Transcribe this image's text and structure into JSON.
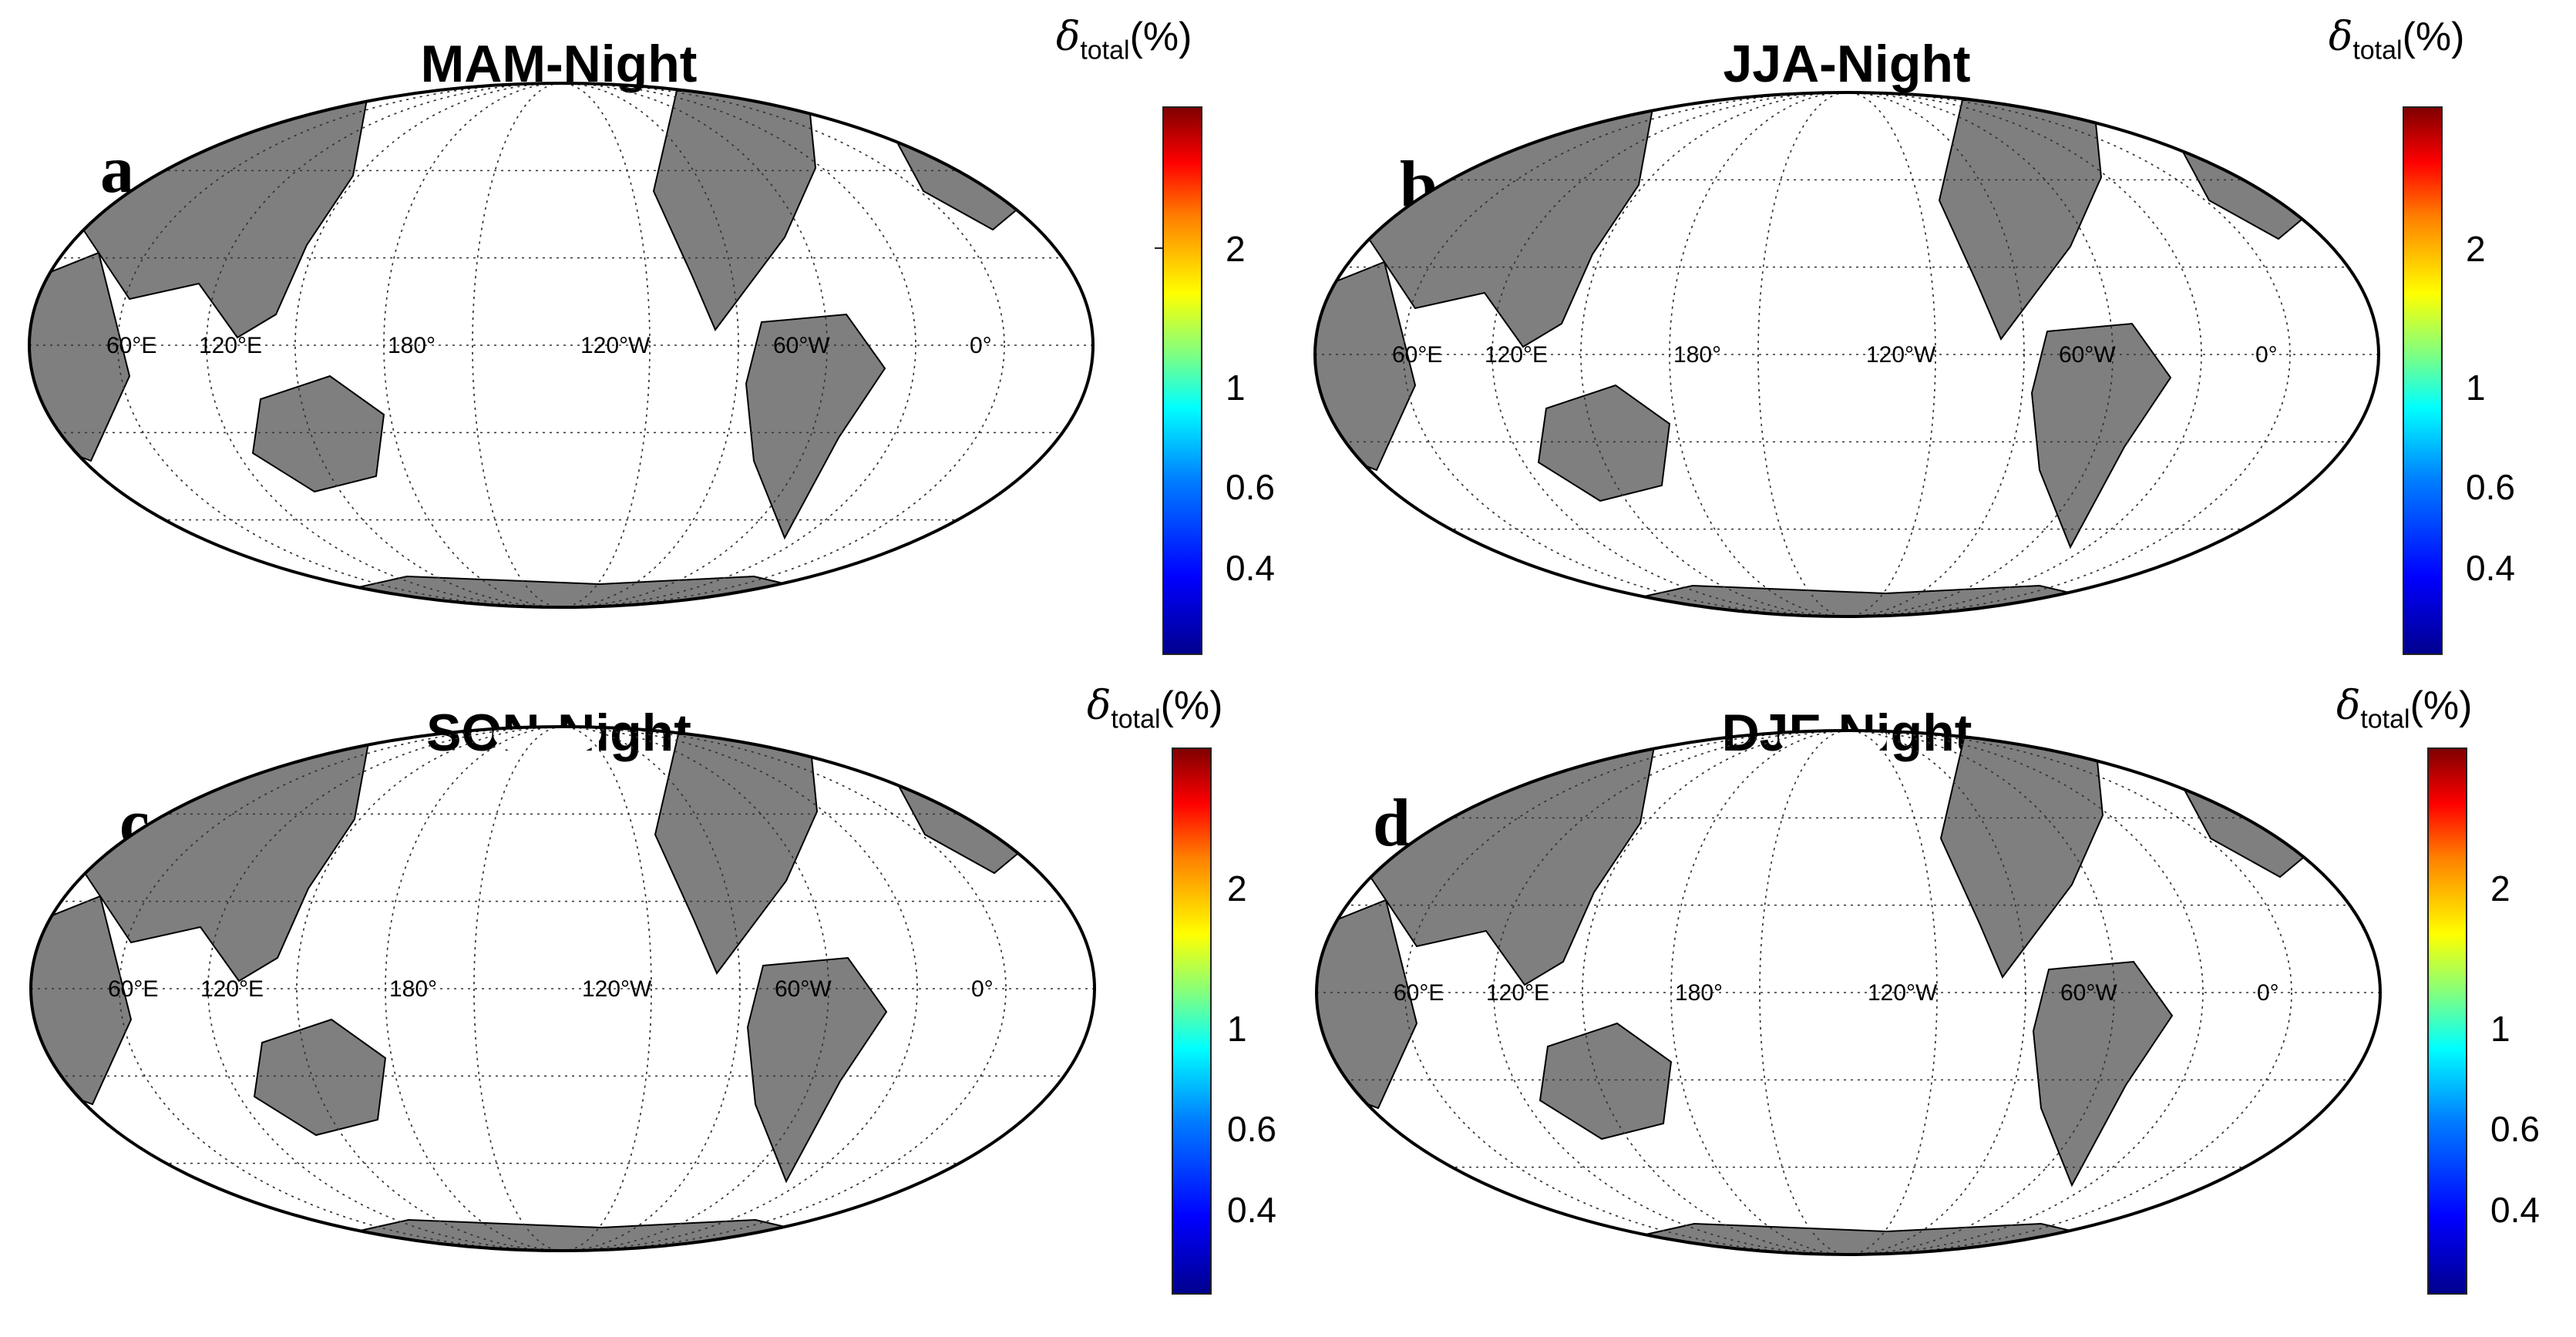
{
  "figure": {
    "panels": [
      {
        "letter": "a",
        "title": "MAM-Night"
      },
      {
        "letter": "b",
        "title": "JJA-Night"
      },
      {
        "letter": "c",
        "title": "SON-Night"
      },
      {
        "letter": "d",
        "title": "DJF-Night"
      }
    ],
    "colorbar": {
      "symbol": "δ",
      "subscript": "total",
      "unit": "(%)",
      "ticks": [
        "2",
        "1",
        "0.6",
        "0.4"
      ],
      "scale": "log",
      "colormap": "jet"
    },
    "lon_labels": [
      "60°E",
      "120°E",
      "180°",
      "120°W",
      "60°W",
      "0°"
    ],
    "colors": {
      "land": "#7f7f7f",
      "sea_ice": "#ffffff",
      "low": "#00008f",
      "high": "#800000"
    }
  }
}
